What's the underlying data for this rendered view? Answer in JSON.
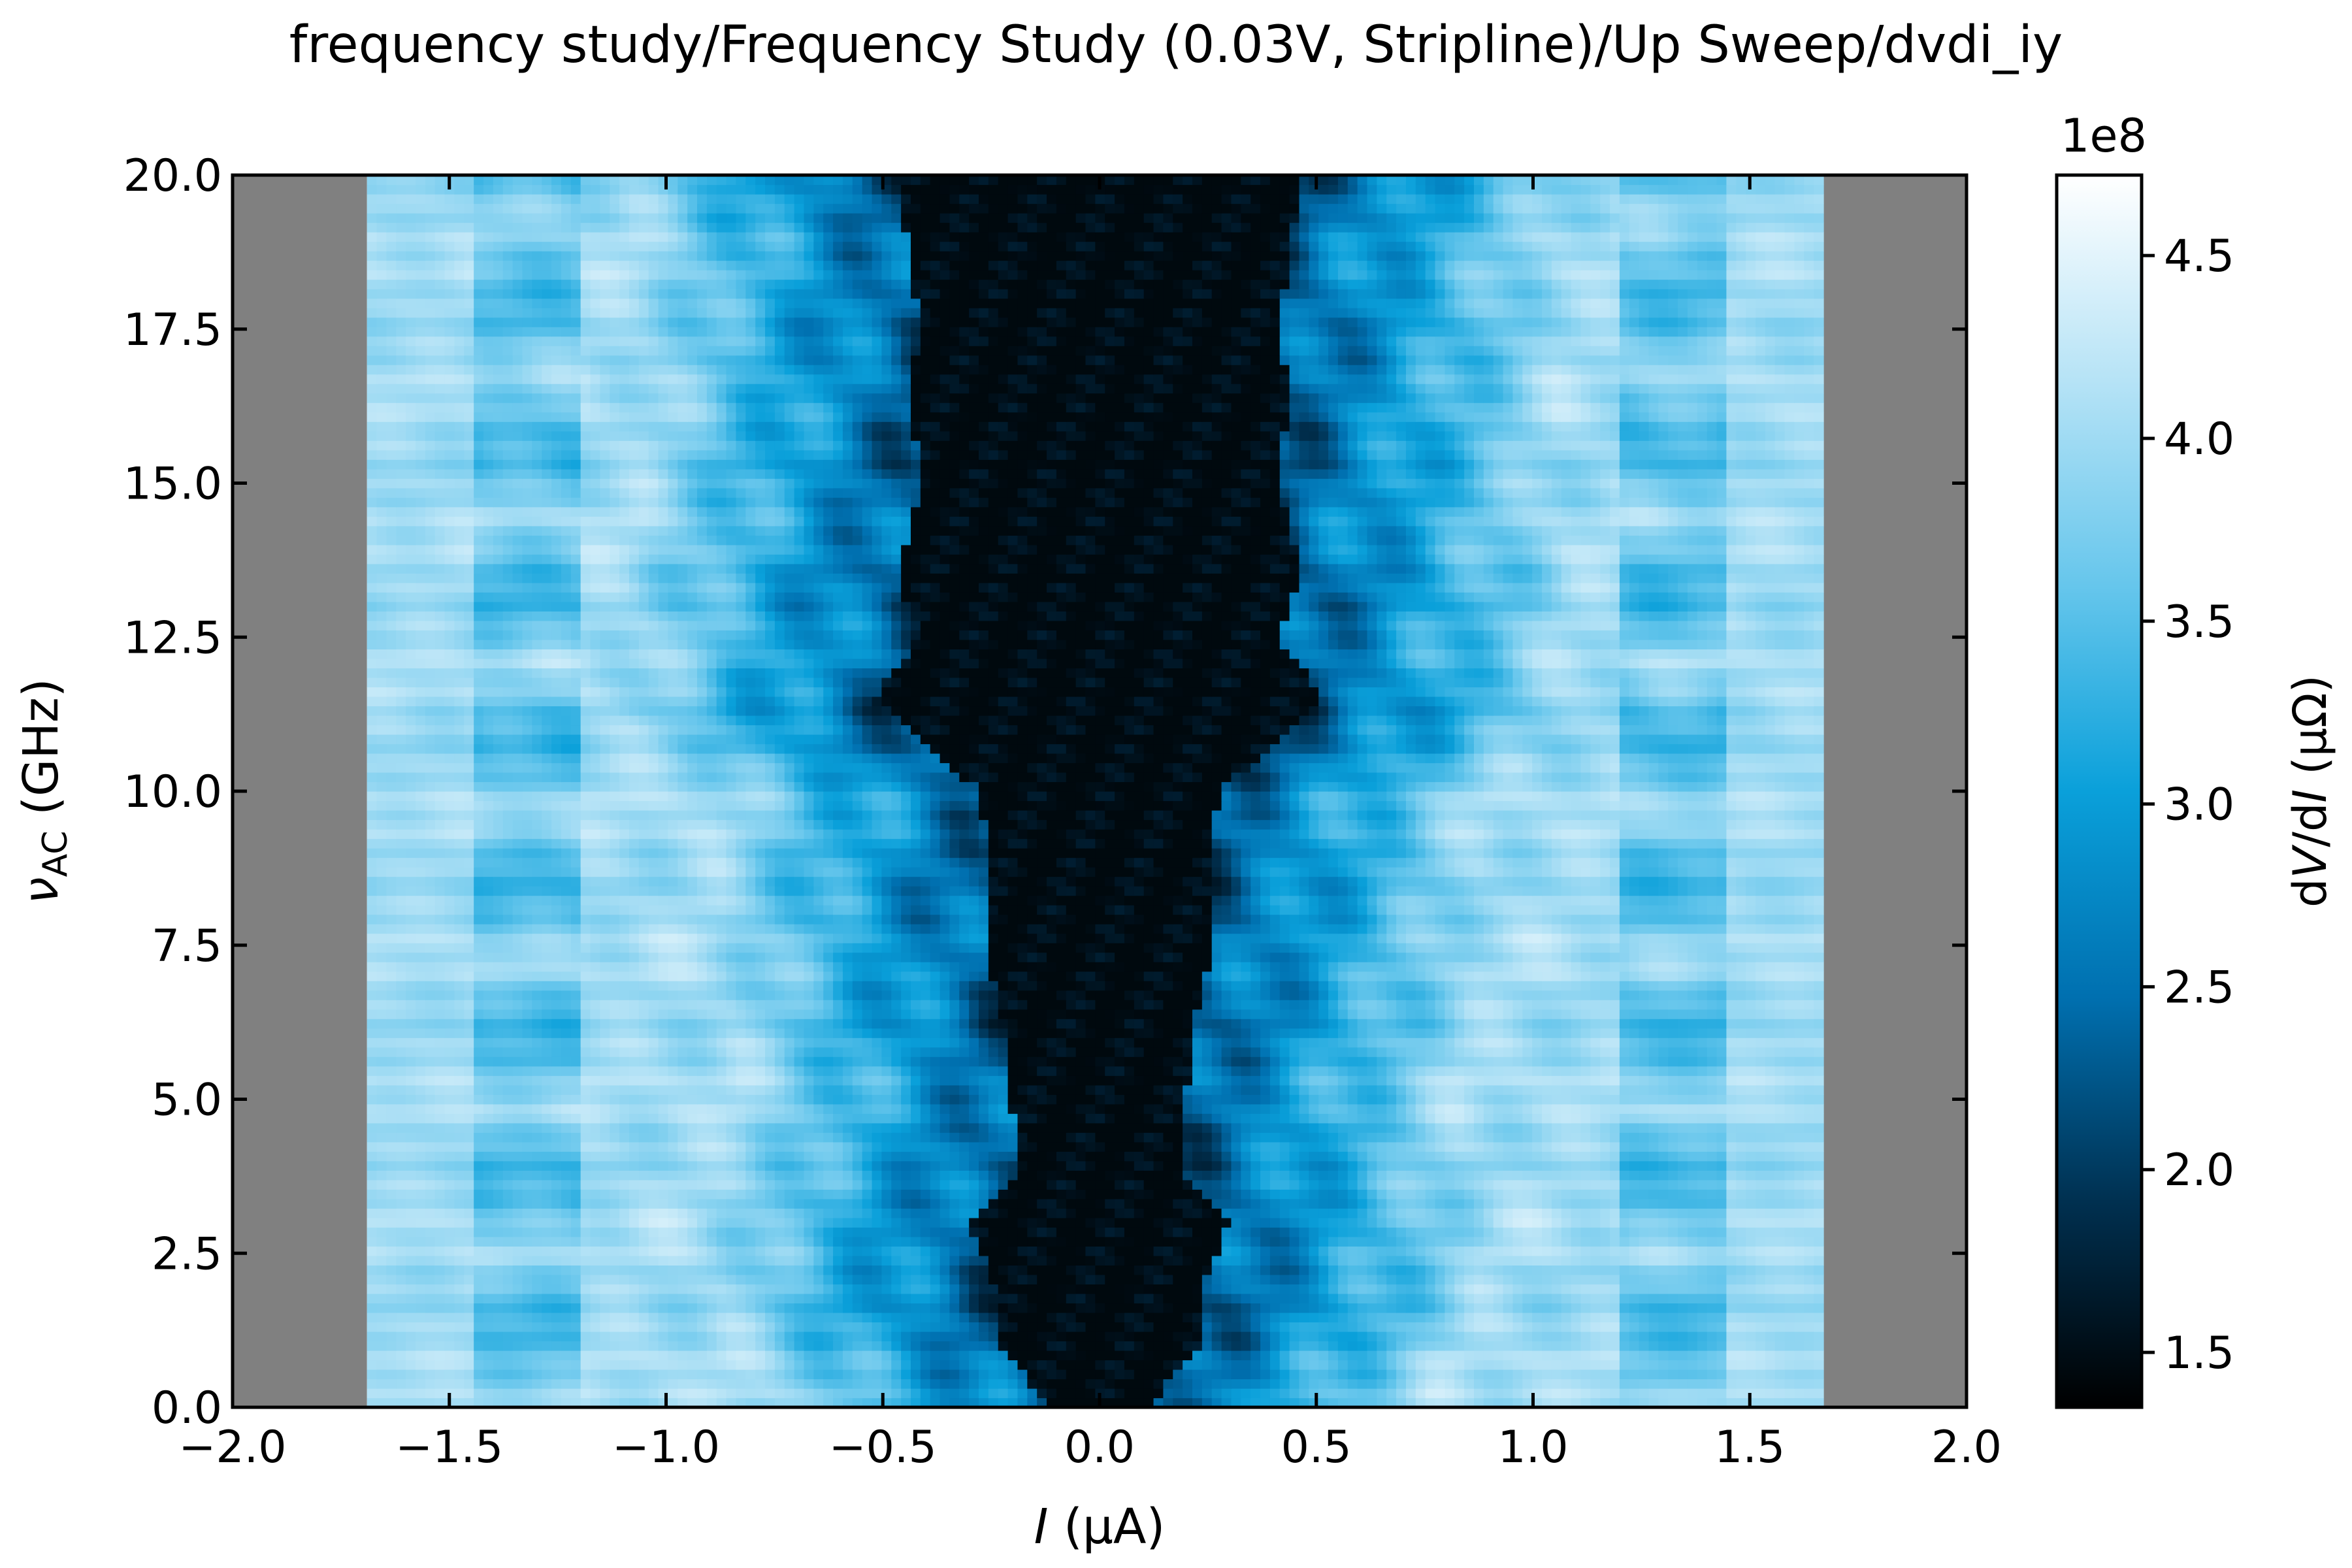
{
  "chart_data": {
    "type": "heatmap",
    "title": "frequency study/Frequency Study (0.03V, Stripline)/Up Sweep/dvdi_iy",
    "xlabel": {
      "symbol": "I",
      "unit": " (µA)"
    },
    "ylabel": {
      "symbol": "ν",
      "subscript": "AC",
      "unit": " (GHz)"
    },
    "colorbar_label": {
      "prefix": "d",
      "symbol1": "V",
      "mid": "/d",
      "symbol2": "I",
      "unit": " (µΩ)"
    },
    "colorbar_multiplier": "1e8",
    "xlim": [
      -2.0,
      2.0
    ],
    "ylim": [
      0.0,
      20.0
    ],
    "clim": [
      1.35,
      4.72
    ],
    "data_x_range": [
      -1.69,
      1.67
    ],
    "x_ticks": [
      -2.0,
      -1.5,
      -1.0,
      -0.5,
      0.0,
      0.5,
      1.0,
      1.5,
      2.0
    ],
    "x_tick_labels": [
      "−2.0",
      "−1.5",
      "−1.0",
      "−0.5",
      "0.0",
      "0.5",
      "1.0",
      "1.5",
      "2.0"
    ],
    "y_ticks": [
      0.0,
      2.5,
      5.0,
      7.5,
      10.0,
      12.5,
      15.0,
      17.5,
      20.0
    ],
    "y_tick_labels": [
      "0.0",
      "2.5",
      "5.0",
      "7.5",
      "10.0",
      "12.5",
      "15.0",
      "17.5",
      "20.0"
    ],
    "colorbar_ticks": [
      1.5,
      2.0,
      2.5,
      3.0,
      3.5,
      4.0,
      4.5
    ],
    "colorbar_tick_labels": [
      "1.5",
      "2.0",
      "2.5",
      "3.0",
      "3.5",
      "4.0",
      "4.5"
    ],
    "colormap": [
      "#000000",
      "#003050",
      "#0070b0",
      "#0aa0da",
      "#66c6ec",
      "#b6e3f6",
      "#ffffff"
    ],
    "nan_color": "#808080",
    "low_resistance_region_width": [
      [
        0.0,
        0.2
      ],
      [
        1.0,
        0.42
      ],
      [
        2.2,
        0.45
      ],
      [
        3.0,
        0.55
      ],
      [
        3.8,
        0.35
      ],
      [
        4.5,
        0.36
      ],
      [
        6.0,
        0.38
      ],
      [
        7.5,
        0.48
      ],
      [
        8.5,
        0.45
      ],
      [
        10.0,
        0.5
      ],
      [
        11.5,
        0.95
      ],
      [
        12.5,
        0.75
      ],
      [
        13.5,
        0.85
      ],
      [
        15.0,
        0.75
      ],
      [
        16.5,
        0.8
      ],
      [
        17.5,
        0.75
      ],
      [
        20.0,
        0.85
      ]
    ],
    "grid": false
  }
}
